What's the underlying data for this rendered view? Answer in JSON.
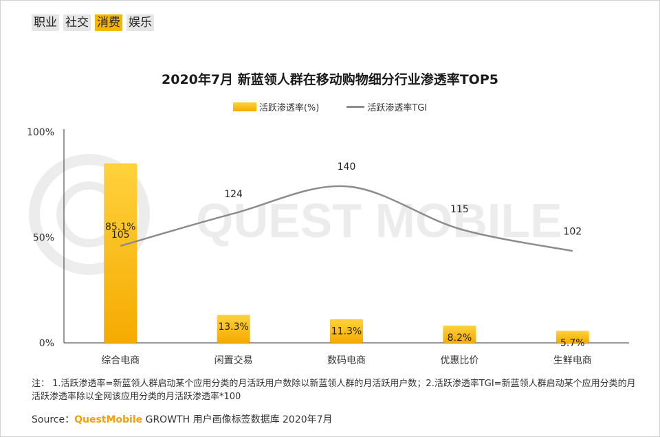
{
  "tabs": [
    {
      "label": "职业",
      "active": false
    },
    {
      "label": "社交",
      "active": false
    },
    {
      "label": "消费",
      "active": true
    },
    {
      "label": "娱乐",
      "active": false
    }
  ],
  "watermark": "QUEST MOBILE",
  "chart_data": {
    "type": "bar+line",
    "title": "2020年7月 新蓝领人群在移动购物细分行业渗透率TOP5",
    "categories": [
      "综合电商",
      "闲置交易",
      "数码电商",
      "优惠比价",
      "生鲜电商"
    ],
    "series": [
      {
        "name": "活跃渗透率(%)",
        "type": "bar",
        "values": [
          85.1,
          13.3,
          11.3,
          8.2,
          5.7
        ],
        "labels": [
          "85.1%",
          "13.3%",
          "11.3%",
          "8.2%",
          "5.7%"
        ]
      },
      {
        "name": "活跃渗透率TGI",
        "type": "line",
        "values": [
          105,
          124,
          140,
          115,
          102
        ],
        "labels": [
          "105",
          "124",
          "140",
          "115",
          "102"
        ]
      }
    ],
    "y_ticks": [
      "100%",
      "50%",
      "0%"
    ],
    "ylim": [
      0,
      100
    ],
    "colors": {
      "bar_top": "#ffd23d",
      "bar_bottom": "#f5aa00",
      "line": "#8c8c8c"
    }
  },
  "note": "注： 1.活跃渗透率=新蓝领人群启动某个应用分类的月活跃用户数除以新蓝领人群的月活跃用户数；2.活跃渗透率TGI=新蓝领人群启动某个应用分类的月活跃渗透率除以全网该应用分类的月活跃渗透率*100",
  "source": {
    "prefix": "Source：",
    "brand": "QuestMobile",
    "text": " GROWTH 用户画像标签数据库 2020年7月"
  }
}
